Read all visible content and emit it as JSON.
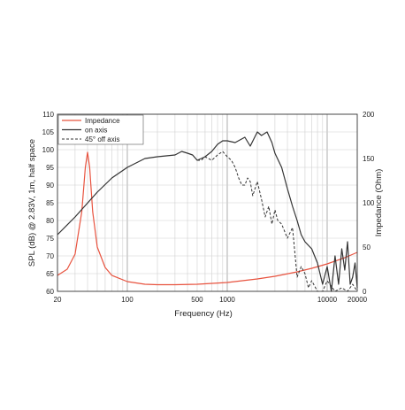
{
  "chart_data": {
    "type": "line",
    "xlabel": "Frequency (Hz)",
    "ylabel": "SPL (dB) @ 2.83V, 1m, half space",
    "y2label": "Impedance (Ohm)",
    "x_scale": "log",
    "xlim": [
      20,
      20000
    ],
    "ylim": [
      60,
      110
    ],
    "y2lim": [
      0,
      200
    ],
    "grid": true,
    "legend_placement": "top-left",
    "x_tick_labels": [
      "20",
      "100",
      "500",
      "1000",
      "10000",
      "20000"
    ],
    "x_tick_values": [
      20,
      100,
      500,
      1000,
      10000,
      20000
    ],
    "y_ticks": [
      60,
      65,
      70,
      75,
      80,
      85,
      90,
      95,
      100,
      105,
      110
    ],
    "y2_ticks": [
      0,
      50,
      100,
      150,
      200
    ],
    "series": [
      {
        "name": "Impedance",
        "axis": "right",
        "color": "#e8533f",
        "style": "solid",
        "x": [
          20,
          25,
          30,
          35,
          38,
          40,
          42,
          45,
          50,
          60,
          70,
          100,
          150,
          200,
          300,
          500,
          1000,
          2000,
          3000,
          5000,
          7000,
          10000,
          15000,
          20000
        ],
        "y": [
          18,
          25,
          42,
          90,
          140,
          157,
          140,
          90,
          50,
          27,
          18,
          11,
          8,
          7.5,
          7.5,
          8,
          10,
          14,
          17,
          22,
          26,
          31,
          38,
          44
        ]
      },
      {
        "name": "on axis",
        "axis": "left",
        "color": "#333333",
        "style": "solid",
        "x": [
          20,
          30,
          50,
          70,
          100,
          150,
          200,
          300,
          350,
          400,
          450,
          500,
          550,
          600,
          700,
          800,
          900,
          1000,
          1200,
          1500,
          1700,
          2000,
          2200,
          2500,
          2800,
          3000,
          3500,
          4000,
          4500,
          5000,
          5500,
          6000,
          7000,
          8000,
          9000,
          10000,
          11000,
          12000,
          13000,
          14000,
          15000,
          16000,
          17000,
          18000,
          19000,
          20000
        ],
        "y": [
          76,
          81,
          88,
          92,
          95,
          97.5,
          98,
          98.5,
          99.5,
          99,
          98.5,
          97,
          97.5,
          98,
          99.5,
          101.5,
          102.5,
          102.5,
          102,
          103.5,
          101,
          105,
          104,
          105,
          102,
          99,
          95,
          89,
          84,
          80,
          76,
          74,
          72,
          68,
          62,
          67,
          60,
          70,
          62,
          72,
          66,
          74,
          62,
          64,
          68,
          61
        ]
      },
      {
        "name": "45° off axis",
        "axis": "left",
        "color": "#333333",
        "style": "dashed",
        "x": [
          500,
          550,
          600,
          700,
          800,
          900,
          1000,
          1100,
          1200,
          1300,
          1400,
          1500,
          1600,
          1700,
          1800,
          2000,
          2200,
          2400,
          2600,
          2800,
          3000,
          3200,
          3500,
          4000,
          4500,
          5000,
          5500,
          6000,
          6500,
          7000,
          8000,
          9000,
          10000,
          12000,
          14000,
          16000,
          18000,
          20000
        ],
        "y": [
          97,
          97,
          98,
          97,
          98.5,
          99.5,
          98,
          97,
          95,
          92,
          90,
          90,
          92,
          91,
          87,
          91,
          86,
          81,
          84,
          79,
          83,
          80,
          79,
          75,
          78,
          64,
          67,
          65,
          61,
          63,
          60,
          60,
          63,
          60,
          61,
          60,
          62,
          60
        ]
      }
    ]
  }
}
